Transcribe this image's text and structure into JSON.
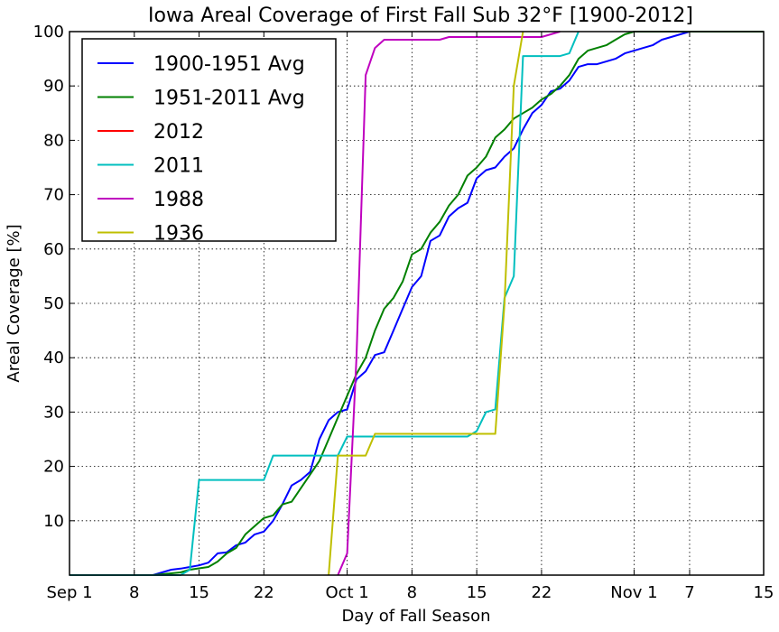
{
  "chart_data": {
    "type": "line",
    "title": "Iowa Areal Coverage of First Fall Sub 32°F [1900-2012]",
    "xlabel": "Day of Fall Season",
    "ylabel": "Areal Coverage [%]",
    "xlim": [
      0,
      75
    ],
    "ylim": [
      0,
      100
    ],
    "grid": true,
    "legend_position": "top-left",
    "x_ticks": [
      {
        "x": 0,
        "label": "Sep 1"
      },
      {
        "x": 7,
        "label": "8"
      },
      {
        "x": 14,
        "label": "15"
      },
      {
        "x": 21,
        "label": "22"
      },
      {
        "x": 30,
        "label": "Oct 1"
      },
      {
        "x": 37,
        "label": "8"
      },
      {
        "x": 44,
        "label": "15"
      },
      {
        "x": 51,
        "label": "22"
      },
      {
        "x": 61,
        "label": "Nov 1"
      },
      {
        "x": 67,
        "label": "7"
      },
      {
        "x": 75,
        "label": "15"
      }
    ],
    "y_ticks": [
      10,
      20,
      30,
      40,
      50,
      60,
      70,
      80,
      90,
      100
    ],
    "series": [
      {
        "name": "1900-1951 Avg",
        "color": "#0000ff",
        "points": [
          [
            0,
            0
          ],
          [
            9,
            0
          ],
          [
            10,
            0.5
          ],
          [
            11,
            1
          ],
          [
            12,
            1.2
          ],
          [
            13,
            1.5
          ],
          [
            14,
            1.8
          ],
          [
            15,
            2.3
          ],
          [
            16,
            4
          ],
          [
            17,
            4.2
          ],
          [
            18,
            5.5
          ],
          [
            19,
            6
          ],
          [
            20,
            7.5
          ],
          [
            21,
            8
          ],
          [
            22,
            10
          ],
          [
            23,
            13
          ],
          [
            24,
            16.5
          ],
          [
            25,
            17.5
          ],
          [
            26,
            19
          ],
          [
            27,
            25
          ],
          [
            28,
            28.5
          ],
          [
            29,
            30
          ],
          [
            30,
            30.5
          ],
          [
            31,
            36
          ],
          [
            32,
            37.5
          ],
          [
            33,
            40.5
          ],
          [
            34,
            41
          ],
          [
            35,
            45
          ],
          [
            36,
            49
          ],
          [
            37,
            53
          ],
          [
            38,
            55
          ],
          [
            39,
            61.5
          ],
          [
            40,
            62.5
          ],
          [
            41,
            66
          ],
          [
            42,
            67.5
          ],
          [
            43,
            68.5
          ],
          [
            44,
            73
          ],
          [
            45,
            74.5
          ],
          [
            46,
            75
          ],
          [
            47,
            77
          ],
          [
            48,
            78.5
          ],
          [
            49,
            82
          ],
          [
            50,
            85
          ],
          [
            51,
            86.5
          ],
          [
            52,
            89
          ],
          [
            53,
            89.5
          ],
          [
            54,
            91
          ],
          [
            55,
            93.5
          ],
          [
            56,
            94
          ],
          [
            57,
            94
          ],
          [
            58,
            94.5
          ],
          [
            59,
            95
          ],
          [
            60,
            96
          ],
          [
            61,
            96.5
          ],
          [
            62,
            97
          ],
          [
            63,
            97.5
          ],
          [
            64,
            98.5
          ],
          [
            65,
            99
          ],
          [
            66,
            99.5
          ],
          [
            67,
            100
          ],
          [
            75,
            100
          ]
        ]
      },
      {
        "name": "1951-2011 Avg",
        "color": "#008000",
        "points": [
          [
            0,
            0
          ],
          [
            9,
            0
          ],
          [
            12,
            0.5
          ],
          [
            13,
            1
          ],
          [
            15,
            1.5
          ],
          [
            16,
            2.5
          ],
          [
            17,
            4
          ],
          [
            18,
            5
          ],
          [
            19,
            7.5
          ],
          [
            20,
            9
          ],
          [
            21,
            10.5
          ],
          [
            22,
            11
          ],
          [
            23,
            13
          ],
          [
            24,
            13.5
          ],
          [
            25,
            16
          ],
          [
            26,
            18.5
          ],
          [
            27,
            21
          ],
          [
            28,
            25
          ],
          [
            29,
            29
          ],
          [
            30,
            33
          ],
          [
            31,
            37
          ],
          [
            32,
            40
          ],
          [
            33,
            45
          ],
          [
            34,
            49
          ],
          [
            35,
            51
          ],
          [
            36,
            54
          ],
          [
            37,
            59
          ],
          [
            38,
            60
          ],
          [
            39,
            63
          ],
          [
            40,
            65
          ],
          [
            41,
            68
          ],
          [
            42,
            70
          ],
          [
            43,
            73.5
          ],
          [
            44,
            75
          ],
          [
            45,
            77
          ],
          [
            46,
            80.5
          ],
          [
            47,
            82
          ],
          [
            48,
            84
          ],
          [
            49,
            85
          ],
          [
            50,
            86
          ],
          [
            51,
            87.5
          ],
          [
            52,
            88.5
          ],
          [
            53,
            90
          ],
          [
            54,
            92
          ],
          [
            55,
            95
          ],
          [
            56,
            96.5
          ],
          [
            57,
            97
          ],
          [
            58,
            97.5
          ],
          [
            59,
            98.5
          ],
          [
            60,
            99.5
          ],
          [
            61,
            100
          ],
          [
            75,
            100
          ]
        ]
      },
      {
        "name": "2012",
        "color": "#ff0000",
        "points": []
      },
      {
        "name": "2011",
        "color": "#00bfbf",
        "points": [
          [
            0,
            0
          ],
          [
            12,
            0
          ],
          [
            13,
            1
          ],
          [
            14,
            17.5
          ],
          [
            21,
            17.5
          ],
          [
            22,
            22
          ],
          [
            29,
            22
          ],
          [
            30,
            25.5
          ],
          [
            43,
            25.5
          ],
          [
            44,
            26.5
          ],
          [
            45,
            30
          ],
          [
            46,
            30.5
          ],
          [
            47,
            51
          ],
          [
            48,
            55
          ],
          [
            49,
            95.5
          ],
          [
            53,
            95.5
          ],
          [
            54,
            96
          ],
          [
            55,
            100
          ]
        ]
      },
      {
        "name": "1988",
        "color": "#bf00bf",
        "points": [
          [
            29,
            0
          ],
          [
            30,
            4
          ],
          [
            31,
            40
          ],
          [
            32,
            92
          ],
          [
            33,
            97
          ],
          [
            34,
            98.5
          ],
          [
            40,
            98.5
          ],
          [
            41,
            99
          ],
          [
            51,
            99
          ],
          [
            52,
            99.5
          ],
          [
            53,
            100
          ]
        ]
      },
      {
        "name": "1936",
        "color": "#bfbf00",
        "points": [
          [
            28,
            0
          ],
          [
            29,
            22
          ],
          [
            32,
            22
          ],
          [
            33,
            26
          ],
          [
            46,
            26
          ],
          [
            47,
            50
          ],
          [
            48,
            90
          ],
          [
            49,
            100
          ]
        ]
      }
    ]
  }
}
